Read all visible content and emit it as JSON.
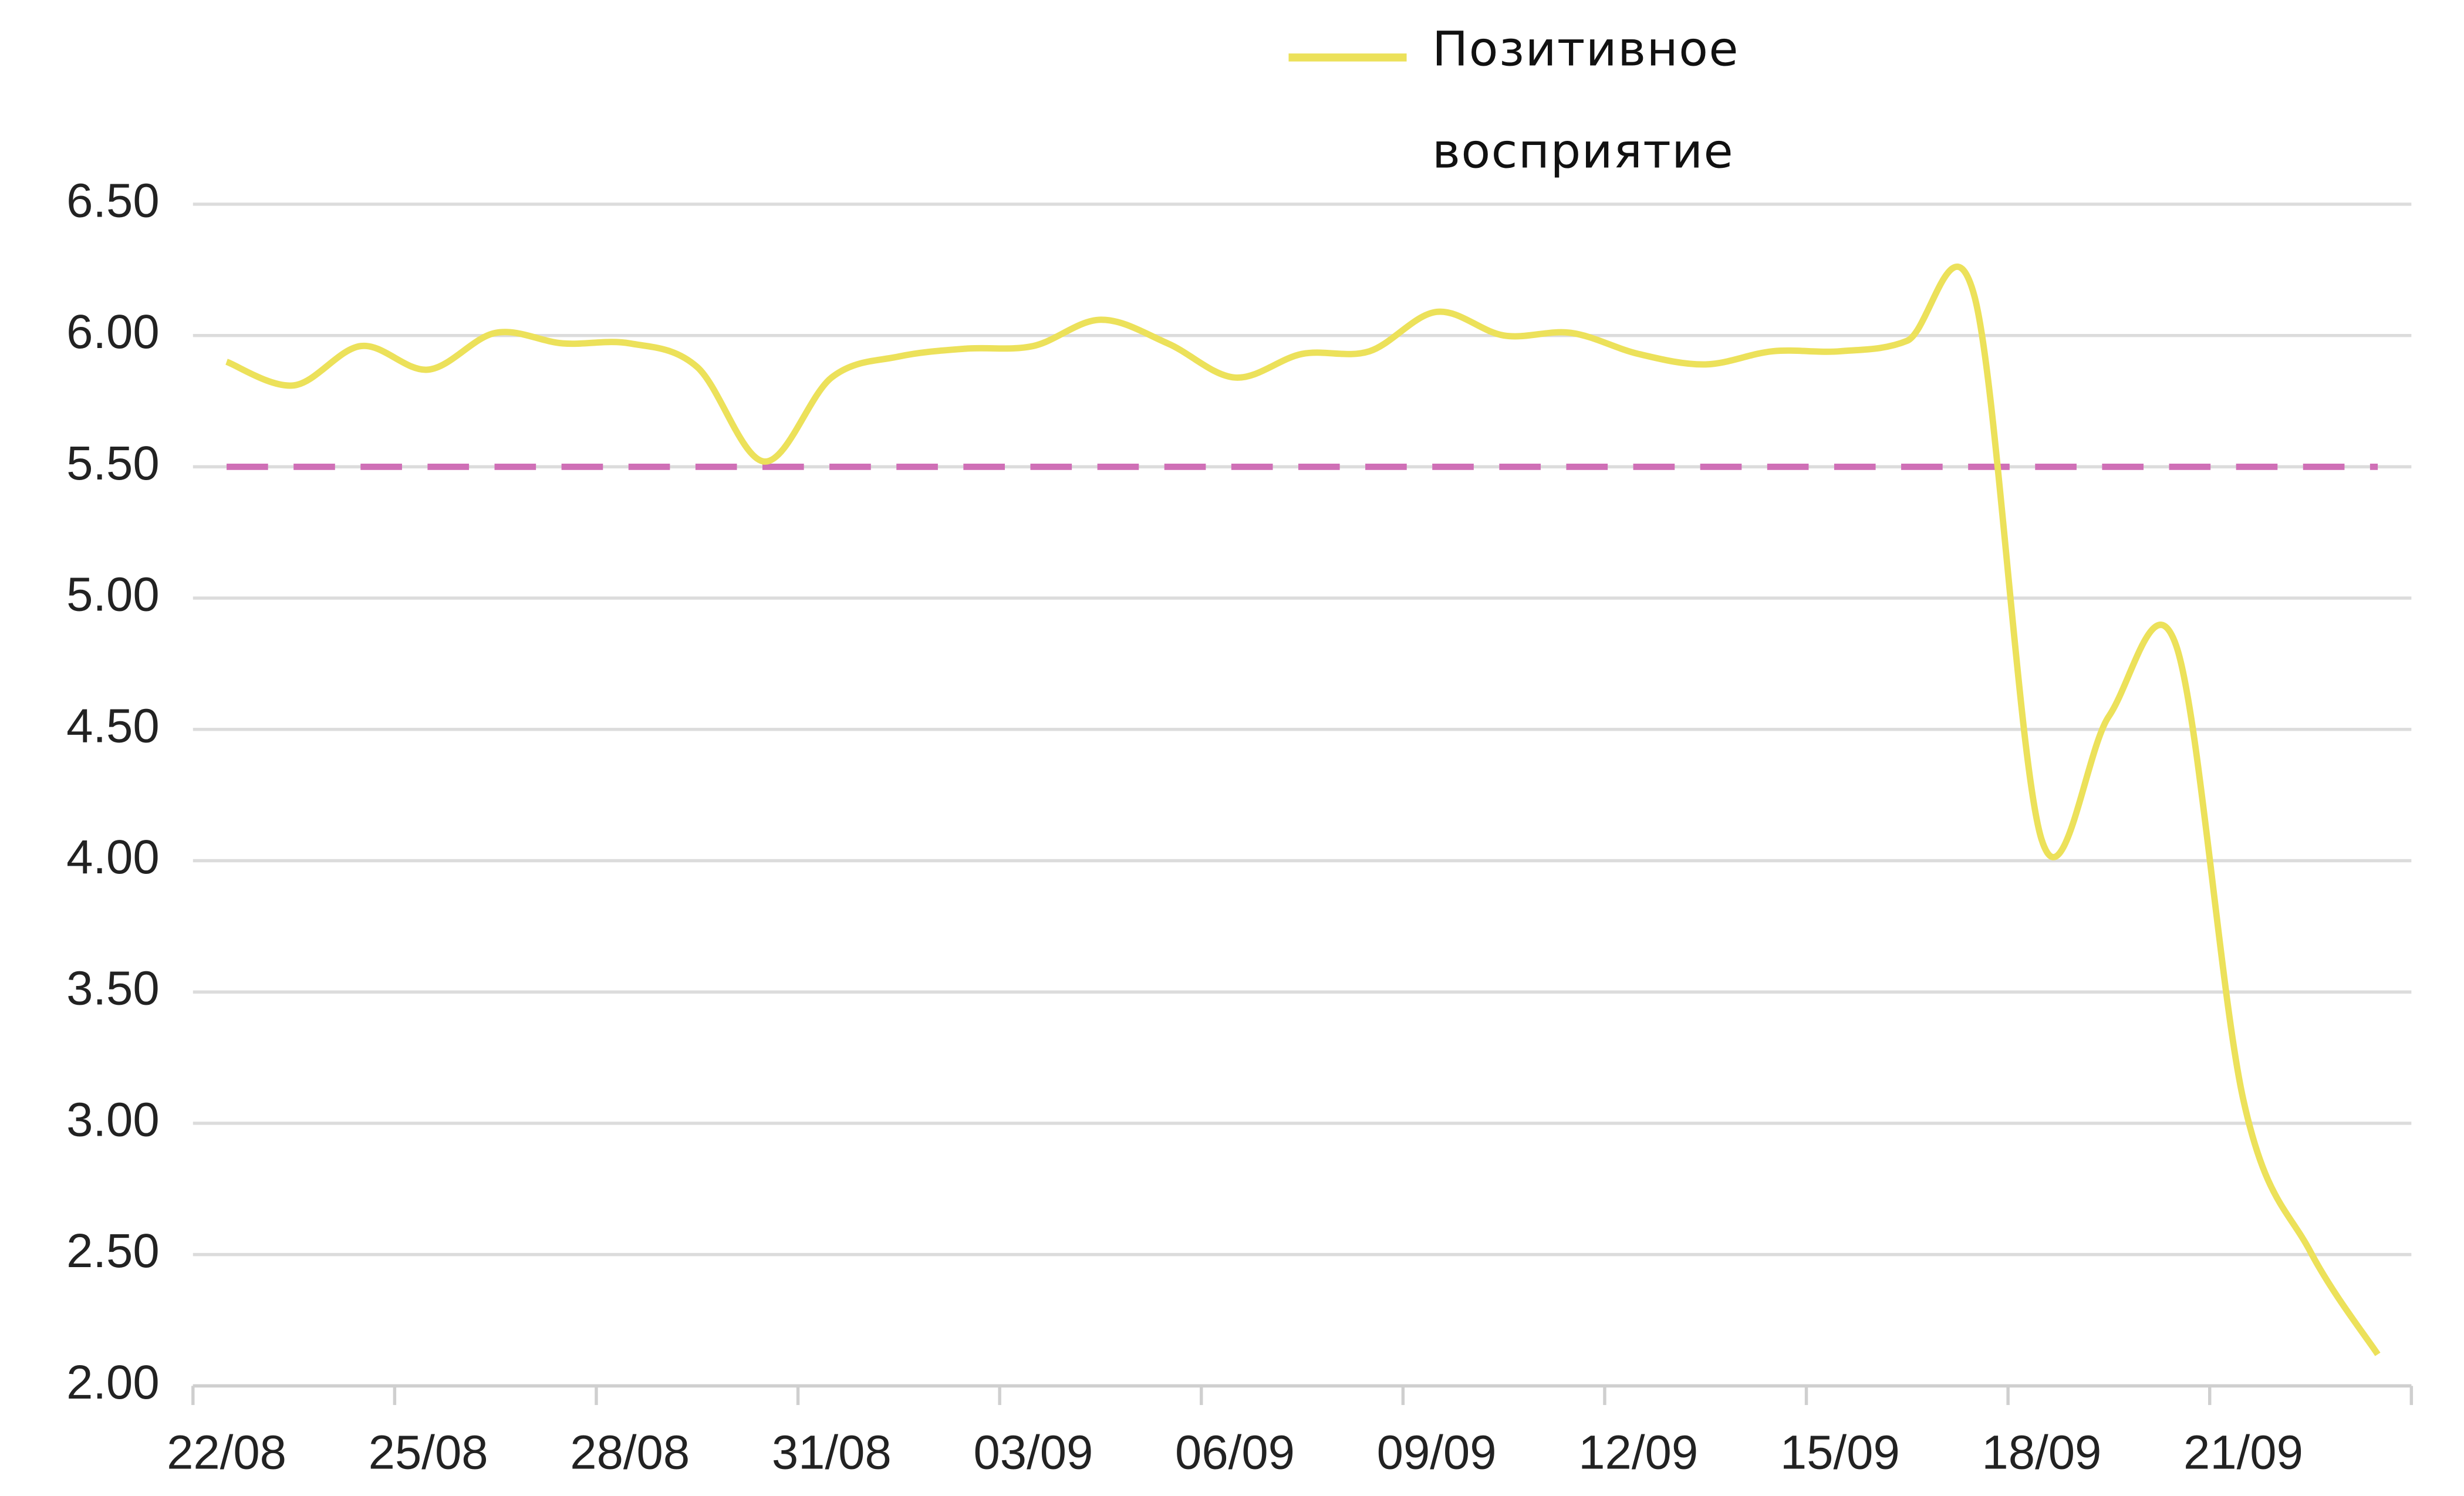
{
  "chart_data": {
    "type": "line",
    "categories": [
      "22/08",
      null,
      null,
      "25/08",
      null,
      null,
      "28/08",
      null,
      null,
      "31/08",
      null,
      null,
      "03/09",
      null,
      null,
      "06/09",
      null,
      null,
      "09/09",
      null,
      null,
      "12/09",
      null,
      null,
      "15/09",
      null,
      null,
      "18/09",
      null,
      null,
      "21/09",
      null,
      null
    ],
    "series": [
      {
        "name": "Позитивное восприятие",
        "color": "#ece15a",
        "values": [
          5.9,
          5.81,
          5.96,
          5.87,
          6.01,
          5.97,
          5.97,
          5.88,
          5.52,
          5.84,
          5.92,
          5.95,
          5.96,
          6.06,
          5.97,
          5.84,
          5.93,
          5.94,
          6.09,
          6.0,
          6.01,
          5.93,
          5.89,
          5.94,
          5.94,
          5.98,
          6.15,
          4.08,
          4.55,
          4.82,
          3.09,
          2.51,
          2.12
        ]
      }
    ],
    "reference_line": {
      "value": 5.5,
      "color": "#cf6fb6"
    },
    "ylim": [
      2.0,
      6.5
    ],
    "yticks": [
      {
        "value": 2.0,
        "label": "2.00"
      },
      {
        "value": 2.5,
        "label": "2.50"
      },
      {
        "value": 3.0,
        "label": "3.00"
      },
      {
        "value": 3.5,
        "label": "3.50"
      },
      {
        "value": 4.0,
        "label": "4.00"
      },
      {
        "value": 4.5,
        "label": "4.50"
      },
      {
        "value": 5.0,
        "label": "5.00"
      },
      {
        "value": 5.5,
        "label": "5.50"
      },
      {
        "value": 6.0,
        "label": "6.00"
      },
      {
        "value": 6.5,
        "label": "6.50"
      }
    ],
    "grid": true,
    "legend": "top"
  }
}
